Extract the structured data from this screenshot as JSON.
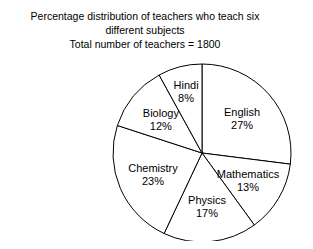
{
  "chart_data": {
    "type": "pie",
    "title": "Percentage distribution of teachers who teach six\ndifferent subjects",
    "subtitle": "Total number of teachers = 1800",
    "categories": [
      "English",
      "Mathematics",
      "Physics",
      "Chemistry",
      "Biology",
      "Hindi"
    ],
    "values": [
      27,
      13,
      17,
      23,
      12,
      8
    ],
    "value_labels": [
      "27%",
      "13%",
      "17%",
      "23%",
      "12%",
      "8%"
    ],
    "color": "#ffffff",
    "data_labels": true
  }
}
